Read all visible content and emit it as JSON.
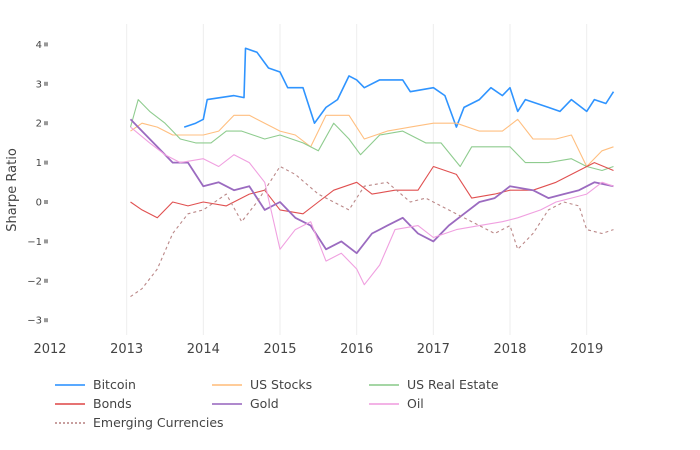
{
  "chart_data": {
    "type": "line",
    "title": "",
    "xlabel": "",
    "ylabel": "Sharpe Ratio",
    "xlim": [
      2012,
      2019.6
    ],
    "ylim": [
      -3.3,
      4.3
    ],
    "x_ticks": [
      "2012",
      "2013",
      "2014",
      "2015",
      "2016",
      "2017",
      "2018",
      "2019"
    ],
    "y_ticks": [
      "4",
      "3",
      "2",
      "1",
      "0",
      "−1",
      "−2",
      "−3"
    ],
    "grid": "vertical only",
    "legend_position": "bottom",
    "series": [
      {
        "name": "Bitcoin",
        "color": "#2f94ff",
        "dash": false,
        "width": 1.6,
        "x": [
          2013.75,
          2013.9,
          2014.0,
          2014.05,
          2014.4,
          2014.53,
          2014.55,
          2014.7,
          2014.85,
          2015.0,
          2015.1,
          2015.3,
          2015.45,
          2015.6,
          2015.75,
          2015.9,
          2016.0,
          2016.1,
          2016.3,
          2016.6,
          2016.7,
          2017.0,
          2017.15,
          2017.3,
          2017.4,
          2017.6,
          2017.75,
          2017.9,
          2018.0,
          2018.1,
          2018.2,
          2018.5,
          2018.65,
          2018.8,
          2019.0,
          2019.1,
          2019.25,
          2019.35
        ],
        "y": [
          1.9,
          2.0,
          2.1,
          2.6,
          2.7,
          2.65,
          3.9,
          3.8,
          3.4,
          3.3,
          2.9,
          2.9,
          2.0,
          2.4,
          2.6,
          3.2,
          3.1,
          2.9,
          3.1,
          3.1,
          2.8,
          2.9,
          2.7,
          1.9,
          2.4,
          2.6,
          2.9,
          2.7,
          2.9,
          2.3,
          2.6,
          2.4,
          2.3,
          2.6,
          2.3,
          2.6,
          2.5,
          2.8
        ]
      },
      {
        "name": "US Stocks",
        "color": "#ffbf80",
        "dash": false,
        "width": 1.1,
        "x": [
          2013.05,
          2013.2,
          2013.4,
          2013.6,
          2013.8,
          2014.0,
          2014.2,
          2014.4,
          2014.6,
          2014.8,
          2015.0,
          2015.2,
          2015.4,
          2015.6,
          2015.9,
          2016.1,
          2016.4,
          2016.7,
          2017.0,
          2017.3,
          2017.6,
          2017.9,
          2018.1,
          2018.3,
          2018.6,
          2018.8,
          2019.0,
          2019.2,
          2019.35
        ],
        "y": [
          1.8,
          2.0,
          1.9,
          1.7,
          1.7,
          1.7,
          1.8,
          2.2,
          2.2,
          2.0,
          1.8,
          1.7,
          1.4,
          2.2,
          2.2,
          1.6,
          1.8,
          1.9,
          2.0,
          2.0,
          1.8,
          1.8,
          2.1,
          1.6,
          1.6,
          1.7,
          0.9,
          1.3,
          1.4
        ]
      },
      {
        "name": "US Real Estate",
        "color": "#8fcc8f",
        "dash": false,
        "width": 1.1,
        "x": [
          2013.05,
          2013.15,
          2013.3,
          2013.5,
          2013.7,
          2013.9,
          2014.1,
          2014.3,
          2014.5,
          2014.8,
          2015.0,
          2015.3,
          2015.5,
          2015.7,
          2015.9,
          2016.05,
          2016.3,
          2016.6,
          2016.9,
          2017.1,
          2017.35,
          2017.5,
          2017.8,
          2018.0,
          2018.2,
          2018.5,
          2018.8,
          2019.0,
          2019.2,
          2019.35
        ],
        "y": [
          1.9,
          2.6,
          2.3,
          2.0,
          1.6,
          1.5,
          1.5,
          1.8,
          1.8,
          1.6,
          1.7,
          1.5,
          1.3,
          2.0,
          1.6,
          1.2,
          1.7,
          1.8,
          1.5,
          1.5,
          0.9,
          1.4,
          1.4,
          1.4,
          1.0,
          1.0,
          1.1,
          0.9,
          0.8,
          0.9
        ]
      },
      {
        "name": "Bonds",
        "color": "#e05050",
        "dash": false,
        "width": 1.1,
        "x": [
          2013.05,
          2013.2,
          2013.4,
          2013.6,
          2013.8,
          2014.0,
          2014.3,
          2014.6,
          2014.8,
          2015.0,
          2015.3,
          2015.5,
          2015.7,
          2016.0,
          2016.2,
          2016.5,
          2016.8,
          2017.0,
          2017.3,
          2017.5,
          2017.8,
          2018.0,
          2018.3,
          2018.6,
          2018.9,
          2019.1,
          2019.35
        ],
        "y": [
          0.0,
          -0.2,
          -0.4,
          0.0,
          -0.1,
          0.0,
          -0.1,
          0.2,
          0.3,
          -0.2,
          -0.3,
          0.0,
          0.3,
          0.5,
          0.2,
          0.3,
          0.3,
          0.9,
          0.7,
          0.1,
          0.2,
          0.3,
          0.3,
          0.5,
          0.8,
          1.0,
          0.8
        ]
      },
      {
        "name": "Gold",
        "color": "#9b6bc0",
        "dash": false,
        "width": 1.8,
        "x": [
          2013.05,
          2013.2,
          2013.4,
          2013.6,
          2013.8,
          2014.0,
          2014.2,
          2014.4,
          2014.6,
          2014.8,
          2015.0,
          2015.2,
          2015.4,
          2015.6,
          2015.8,
          2016.0,
          2016.2,
          2016.4,
          2016.6,
          2016.8,
          2017.0,
          2017.2,
          2017.4,
          2017.6,
          2017.8,
          2018.0,
          2018.3,
          2018.5,
          2018.7,
          2018.9,
          2019.1,
          2019.35
        ],
        "y": [
          2.1,
          1.8,
          1.4,
          1.0,
          1.0,
          0.4,
          0.5,
          0.3,
          0.4,
          -0.2,
          0.0,
          -0.4,
          -0.6,
          -1.2,
          -1.0,
          -1.3,
          -0.8,
          -0.6,
          -0.4,
          -0.8,
          -1.0,
          -0.6,
          -0.3,
          0.0,
          0.1,
          0.4,
          0.3,
          0.1,
          0.2,
          0.3,
          0.5,
          0.4
        ]
      },
      {
        "name": "Oil",
        "color": "#f0a0e0",
        "dash": false,
        "width": 1.1,
        "x": [
          2013.05,
          2013.3,
          2013.5,
          2013.7,
          2014.0,
          2014.2,
          2014.4,
          2014.6,
          2014.8,
          2015.0,
          2015.2,
          2015.4,
          2015.6,
          2015.8,
          2016.0,
          2016.1,
          2016.3,
          2016.5,
          2016.8,
          2017.0,
          2017.3,
          2017.6,
          2017.9,
          2018.1,
          2018.4,
          2018.6,
          2018.8,
          2019.0,
          2019.2,
          2019.35
        ],
        "y": [
          1.9,
          1.5,
          1.2,
          1.0,
          1.1,
          0.9,
          1.2,
          1.0,
          0.5,
          -1.2,
          -0.7,
          -0.5,
          -1.5,
          -1.3,
          -1.7,
          -2.1,
          -1.6,
          -0.7,
          -0.6,
          -0.9,
          -0.7,
          -0.6,
          -0.5,
          -0.4,
          -0.2,
          0.0,
          0.1,
          0.2,
          0.5,
          0.4
        ]
      },
      {
        "name": "Emerging Currencies",
        "color": "#bb8888",
        "dash": true,
        "width": 1.1,
        "x": [
          2013.05,
          2013.2,
          2013.4,
          2013.6,
          2013.8,
          2014.0,
          2014.3,
          2014.5,
          2014.7,
          2015.0,
          2015.2,
          2015.5,
          2015.7,
          2015.9,
          2016.1,
          2016.4,
          2016.7,
          2016.9,
          2017.2,
          2017.5,
          2017.8,
          2018.0,
          2018.1,
          2018.3,
          2018.5,
          2018.7,
          2018.9,
          2019.0,
          2019.2,
          2019.35
        ],
        "y": [
          -2.4,
          -2.2,
          -1.7,
          -0.8,
          -0.3,
          -0.2,
          0.2,
          -0.5,
          0.0,
          0.9,
          0.7,
          0.2,
          0.0,
          -0.2,
          0.4,
          0.5,
          0.0,
          0.1,
          -0.2,
          -0.5,
          -0.8,
          -0.6,
          -1.2,
          -0.8,
          -0.2,
          0.0,
          -0.1,
          -0.7,
          -0.8,
          -0.7
        ]
      }
    ]
  }
}
